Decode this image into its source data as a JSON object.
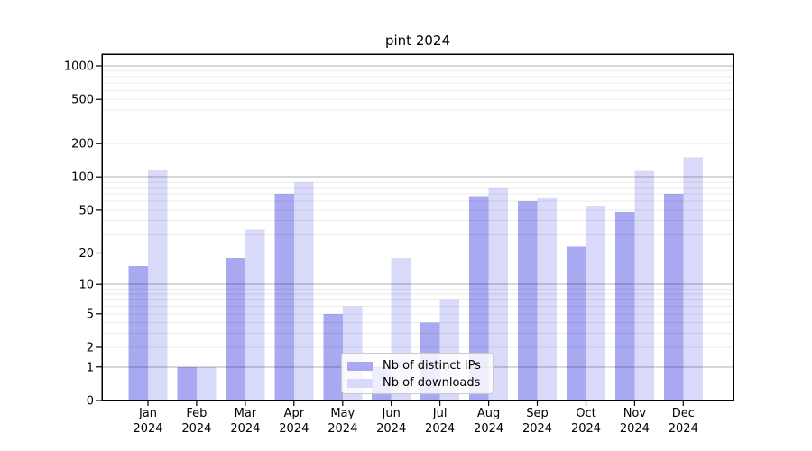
{
  "title": "pint 2024",
  "chart_data": {
    "type": "bar",
    "title": "pint 2024",
    "categories": [
      "Jan",
      "Feb",
      "Mar",
      "Apr",
      "May",
      "Jun",
      "Jul",
      "Aug",
      "Sep",
      "Oct",
      "Nov",
      "Dec"
    ],
    "category_year": "2024",
    "series": [
      {
        "name": "Nb of distinct IPs",
        "color": "#a9a9f1",
        "values": [
          15,
          1,
          18,
          70,
          5,
          1,
          4,
          67,
          60,
          23,
          48,
          70
        ]
      },
      {
        "name": "Nb of downloads",
        "color": "#d9d9f9",
        "values": [
          115,
          1,
          33,
          90,
          6,
          18,
          7,
          80,
          65,
          55,
          113,
          150
        ]
      }
    ],
    "yscale": "symlog-log1p",
    "ylim": [
      0,
      1230
    ],
    "y_ticks": [
      0,
      1,
      2,
      5,
      10,
      20,
      50,
      100,
      200,
      500,
      1000
    ],
    "y_tick_labels": [
      "0",
      "1",
      "2",
      "5",
      "10",
      "20",
      "50",
      "100",
      "200",
      "500",
      "1000"
    ],
    "grid": "horizontal major+minor, drawn over bars",
    "legend_position": "lower center",
    "xlabel": "",
    "ylabel": ""
  },
  "colors": {
    "major_grid": "rgba(0,0,0,0.30)",
    "minor_grid": "rgba(0,0,0,0.08)",
    "frame": "#000000"
  }
}
